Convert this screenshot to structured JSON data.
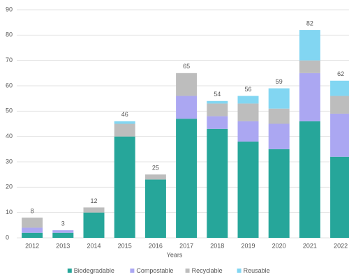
{
  "chart_data": {
    "type": "stacked-bar",
    "x_label": "Years",
    "categories": [
      "2012",
      "2013",
      "2014",
      "2015",
      "2016",
      "2017",
      "2018",
      "2019",
      "2020",
      "2021",
      "2022"
    ],
    "series": [
      {
        "name": "Biodegradable",
        "color": "#26a69a",
        "values": [
          2,
          2,
          10,
          40,
          23,
          47,
          43,
          38,
          35,
          46,
          32
        ]
      },
      {
        "name": "Compostable",
        "color": "#aba7f2",
        "values": [
          2,
          1,
          0,
          0,
          0,
          9,
          5,
          8,
          10,
          19,
          17
        ]
      },
      {
        "name": "Recyclable",
        "color": "#bdbdbd",
        "values": [
          4,
          0,
          2,
          5,
          2,
          9,
          5,
          7,
          6,
          5,
          7
        ]
      },
      {
        "name": "Reusable",
        "color": "#82d6f2",
        "values": [
          0,
          0,
          0,
          1,
          0,
          0,
          1,
          3,
          8,
          12,
          6
        ]
      }
    ],
    "totals": [
      8,
      3,
      12,
      46,
      25,
      65,
      54,
      56,
      59,
      82,
      62
    ],
    "ylim": [
      0,
      90
    ],
    "yticks": [
      0,
      10,
      20,
      30,
      40,
      50,
      60,
      70,
      80,
      90
    ],
    "grid": true,
    "legend": "bottom"
  }
}
